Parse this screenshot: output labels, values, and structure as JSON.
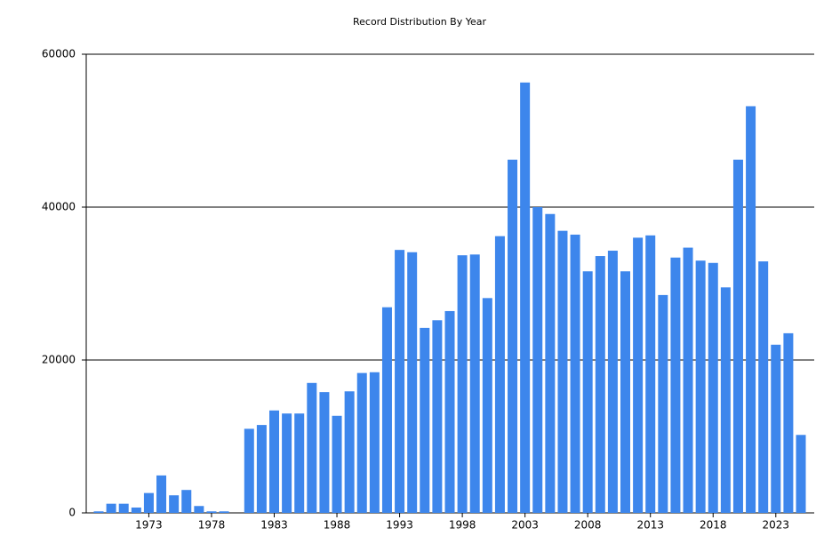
{
  "chart_data": {
    "type": "bar",
    "title": "Record Distribution By Year",
    "categories": [
      null,
      null,
      null,
      null,
      "1973",
      null,
      null,
      null,
      null,
      "1978",
      null,
      null,
      null,
      null,
      "1983",
      null,
      null,
      null,
      null,
      "1988",
      null,
      null,
      null,
      null,
      "1993",
      null,
      null,
      null,
      null,
      "1998",
      null,
      null,
      null,
      null,
      "2003",
      null,
      null,
      null,
      null,
      "2008",
      null,
      null,
      null,
      null,
      "2013",
      null,
      null,
      null,
      null,
      "2018",
      null,
      null,
      null,
      null,
      "2023",
      null,
      null
    ],
    "values": [
      200,
      1200,
      1200,
      700,
      2600,
      4900,
      2300,
      3000,
      900,
      200,
      200,
      0,
      11000,
      11500,
      13400,
      13000,
      13000,
      17000,
      15800,
      12700,
      15900,
      18300,
      18400,
      26900,
      34400,
      34100,
      24200,
      25200,
      26400,
      33700,
      33800,
      28100,
      36200,
      46200,
      56300,
      40000,
      39100,
      36900,
      36400,
      31600,
      33600,
      34300,
      31600,
      36000,
      36300,
      28500,
      33400,
      34700,
      33000,
      32700,
      29500,
      46200,
      53200,
      32900,
      22000,
      23500,
      10200
    ],
    "color": "#3d86ec",
    "ylim": [
      0,
      60000
    ],
    "yticks": [
      0,
      20000,
      40000,
      60000
    ],
    "grid": true
  }
}
